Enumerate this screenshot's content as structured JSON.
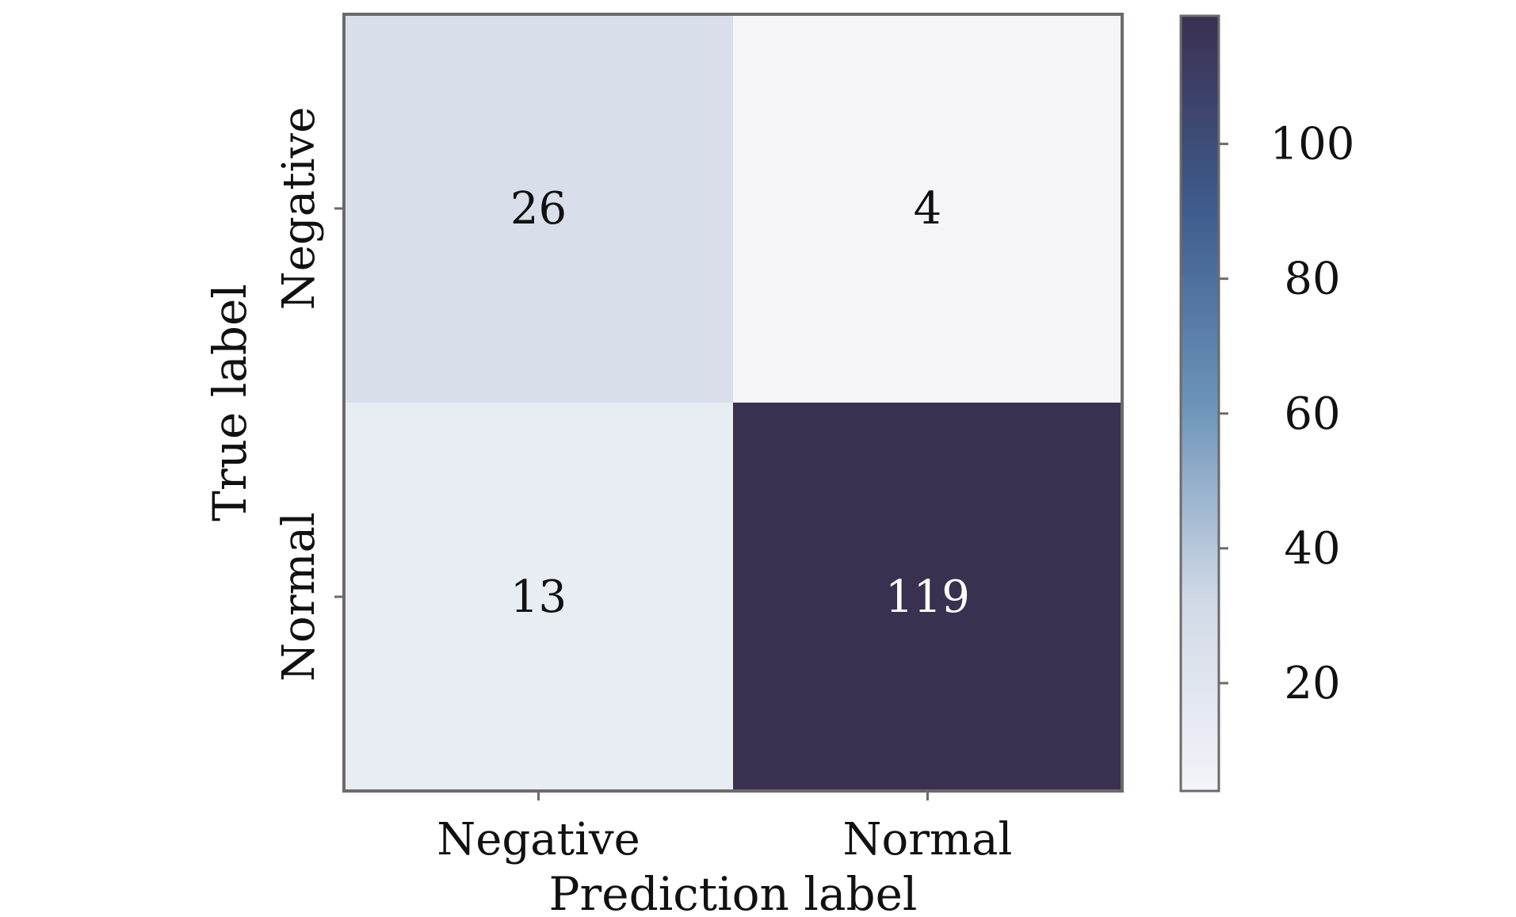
{
  "chart_data": {
    "type": "heatmap",
    "title": "",
    "xlabel": "Prediction label",
    "ylabel": "True label",
    "x_categories": [
      "Negative",
      "Normal"
    ],
    "y_categories": [
      "Negative",
      "Normal"
    ],
    "values": [
      [
        26,
        4
      ],
      [
        13,
        119
      ]
    ],
    "colorbar": {
      "range": [
        4,
        119
      ],
      "ticks": [
        20,
        40,
        60,
        80,
        100
      ],
      "colors": [
        "#f4f4f9",
        "#cfd9e6",
        "#6b93b9",
        "#3e5c8d",
        "#3a3050"
      ]
    },
    "grid": false,
    "legend": "colorbar-right"
  }
}
